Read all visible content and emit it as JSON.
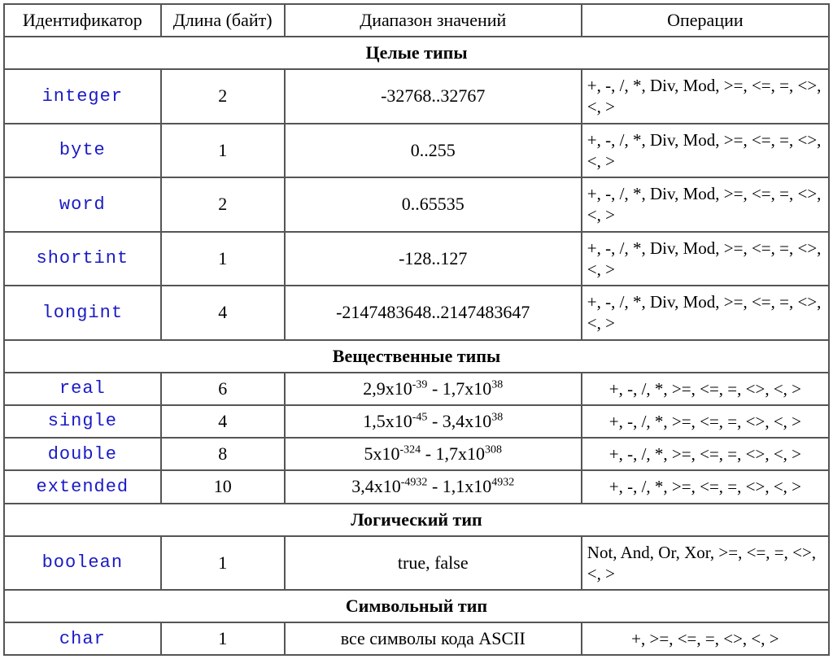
{
  "headers": {
    "col0": "Идентификатор",
    "col1": "Длина (байт)",
    "col2": "Диапазон значений",
    "col3": "Операции"
  },
  "sections": {
    "integer": "Целые типы",
    "real": "Вещественные типы",
    "logic": "Логический тип",
    "symbol": "Символьный тип"
  },
  "ops": {
    "full": "+, -, /, *, Div, Mod, >=, <=, =, <>, <, >",
    "real": "+, -, /, *, >=, <=, =, <>, <, >",
    "bool": "Not, And, Or, Xor, >=, <=, =, <>, <, >",
    "char": "+, >=, <=, =, <>, <, >"
  },
  "rows": {
    "integer": {
      "id": "integer",
      "len": "2",
      "range": "-32768..32767"
    },
    "byte": {
      "id": "byte",
      "len": "1",
      "range": "0..255"
    },
    "word": {
      "id": "word",
      "len": "2",
      "range": "0..65535"
    },
    "shortint": {
      "id": "shortint",
      "len": "1",
      "range": "-128..127"
    },
    "longint": {
      "id": "longint",
      "len": "4",
      "range": "-2147483648..2147483647"
    },
    "real": {
      "id": "real",
      "len": "6",
      "range_base1": "2,9х10",
      "range_exp1": "-39",
      "range_mid": " - ",
      "range_base2": "1,7х10",
      "range_exp2": "38"
    },
    "single": {
      "id": "single",
      "len": "4",
      "range_base1": "1,5х10",
      "range_exp1": "-45",
      "range_mid": " - ",
      "range_base2": "3,4х10",
      "range_exp2": "38"
    },
    "double": {
      "id": "double",
      "len": "8",
      "range_base1": "5х10",
      "range_exp1": "-324",
      "range_mid": " - ",
      "range_base2": "1,7х10",
      "range_exp2": "308"
    },
    "extended": {
      "id": "extended",
      "len": "10",
      "range_base1": "3,4х10",
      "range_exp1": "-4932",
      "range_mid": " - ",
      "range_base2": "1,1х10",
      "range_exp2": "4932"
    },
    "boolean": {
      "id": "boolean",
      "len": "1",
      "range": "true, false"
    },
    "char": {
      "id": "char",
      "len": "1",
      "range": "все символы кода ASCII"
    }
  },
  "style": {
    "identifier_color": "#1a1ac7",
    "border_color": "#555555",
    "text_color": "#000000",
    "background_color": "#ffffff",
    "header_fontsize": 22,
    "cell_fontsize": 22,
    "identifier_font": "Courier New",
    "body_font": "Times New Roman",
    "col_widths_pct": [
      19,
      15,
      36,
      30
    ]
  }
}
